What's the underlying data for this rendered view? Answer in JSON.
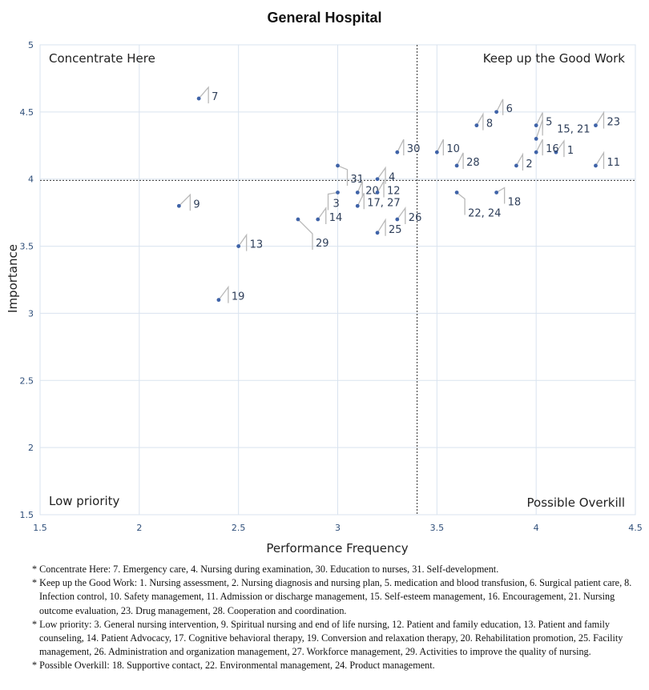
{
  "chart_data": {
    "type": "scatter",
    "title": "General Hospital",
    "xlabel": "Performance Frequency",
    "ylabel": "Importance",
    "xlim": [
      1.5,
      4.5
    ],
    "ylim": [
      1.5,
      5
    ],
    "xticks": [
      "1.5",
      "2",
      "2.5",
      "3",
      "3.5",
      "4",
      "4.5"
    ],
    "yticks": [
      "1.5",
      "2",
      "2.5",
      "3",
      "3.5",
      "4",
      "4.5",
      "5"
    ],
    "grid": true,
    "reference_lines": {
      "x": 3.4,
      "y": 3.99
    },
    "quadrant_labels": {
      "top_left": "Concentrate Here",
      "top_right": "Keep up the Good Work",
      "bottom_left": "Low priority",
      "bottom_right": "Possible Overkill"
    },
    "points": [
      {
        "label": "7",
        "x": 2.3,
        "y": 4.6
      },
      {
        "label": "6",
        "x": 3.8,
        "y": 4.5
      },
      {
        "label": "8",
        "x": 3.7,
        "y": 4.4
      },
      {
        "label": "5",
        "x": 4.0,
        "y": 4.4
      },
      {
        "label": "23",
        "x": 4.3,
        "y": 4.4
      },
      {
        "label": "15, 21",
        "x": 4.0,
        "y": 4.3
      },
      {
        "label": "30",
        "x": 3.3,
        "y": 4.2
      },
      {
        "label": "10",
        "x": 3.5,
        "y": 4.2
      },
      {
        "label": "1",
        "x": 4.1,
        "y": 4.2
      },
      {
        "label": "16",
        "x": 4.0,
        "y": 4.2
      },
      {
        "label": "28",
        "x": 3.6,
        "y": 4.1
      },
      {
        "label": "2",
        "x": 3.9,
        "y": 4.1
      },
      {
        "label": "11",
        "x": 4.3,
        "y": 4.1
      },
      {
        "label": "31",
        "x": 3.0,
        "y": 4.1
      },
      {
        "label": "4",
        "x": 3.2,
        "y": 4.0
      },
      {
        "label": "20",
        "x": 3.1,
        "y": 3.9
      },
      {
        "label": "12",
        "x": 3.2,
        "y": 3.9
      },
      {
        "label": "3",
        "x": 3.0,
        "y": 3.9
      },
      {
        "label": "22, 24",
        "x": 3.6,
        "y": 3.9
      },
      {
        "label": "18",
        "x": 3.8,
        "y": 3.9
      },
      {
        "label": "9",
        "x": 2.2,
        "y": 3.8
      },
      {
        "label": "17, 27",
        "x": 3.1,
        "y": 3.8
      },
      {
        "label": "14",
        "x": 2.9,
        "y": 3.7
      },
      {
        "label": "29",
        "x": 2.8,
        "y": 3.7
      },
      {
        "label": "26",
        "x": 3.3,
        "y": 3.7
      },
      {
        "label": "25",
        "x": 3.2,
        "y": 3.6
      },
      {
        "label": "13",
        "x": 2.5,
        "y": 3.5
      },
      {
        "label": "19",
        "x": 2.4,
        "y": 3.1
      }
    ]
  },
  "footnotes": [
    "* Concentrate Here: 7. Emergency care, 4. Nursing during examination, 30. Education to nurses, 31. Self-development.",
    "* Keep up the Good Work: 1. Nursing assessment, 2. Nursing diagnosis and nursing plan, 5. medication and blood transfusion, 6. Surgical patient care, 8. Infection control, 10. Safety management, 11. Admission or discharge management, 15. Self-esteem management, 16. Encouragement, 21. Nursing outcome evaluation, 23. Drug management, 28. Cooperation and coordination.",
    "* Low priority: 3. General nursing intervention, 9. Spiritual nursing and end of life nursing, 12. Patient and family education, 13. Patient and family counseling, 14. Patient Advocacy, 17. Cognitive behavioral therapy, 19. Conversion and relaxation therapy, 20. Rehabilitation promotion, 25. Facility management, 26. Administration and organization management, 27. Workforce management, 29. Activities to improve the quality of nursing.",
    "* Possible Overkill: 18. Supportive contact, 22. Environmental management, 24. Product management."
  ]
}
